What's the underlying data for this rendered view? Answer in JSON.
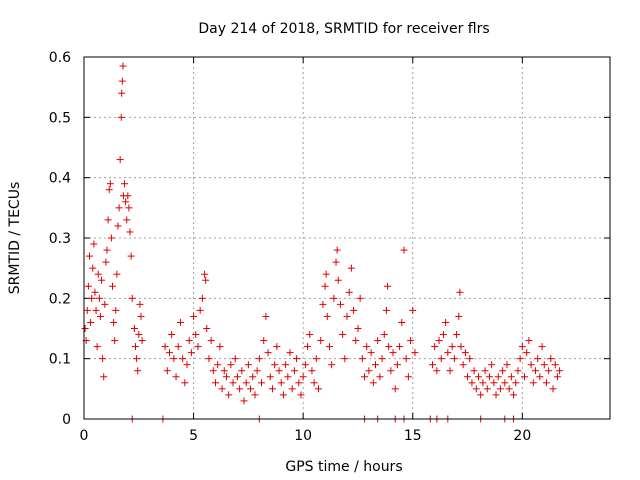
{
  "chart_data": {
    "type": "scatter",
    "title": "Day 214 of 2018, SRMTID for receiver flrs",
    "xlabel": "GPS time / hours",
    "ylabel": "SRMTID / TECUs",
    "xlim": [
      0,
      24
    ],
    "ylim": [
      0,
      0.6
    ],
    "xticks": [
      0,
      5,
      10,
      15,
      20
    ],
    "xtick_labels": [
      "0",
      "5",
      "10",
      "15",
      "20"
    ],
    "yticks": [
      0,
      0.1,
      0.2,
      0.3,
      0.4,
      0.5,
      0.6
    ],
    "ytick_labels": [
      "0",
      "0.1",
      "0.2",
      "0.3",
      "0.4",
      "0.5",
      "0.6"
    ],
    "grid": true,
    "marker": "+",
    "color": "#e00000",
    "series": [
      {
        "name": "SRMTID",
        "points": [
          [
            0.05,
            0.15
          ],
          [
            0.1,
            0.13
          ],
          [
            0.15,
            0.18
          ],
          [
            0.2,
            0.22
          ],
          [
            0.25,
            0.27
          ],
          [
            0.3,
            0.16
          ],
          [
            0.35,
            0.2
          ],
          [
            0.4,
            0.25
          ],
          [
            0.45,
            0.29
          ],
          [
            0.5,
            0.21
          ],
          [
            0.55,
            0.18
          ],
          [
            0.6,
            0.12
          ],
          [
            0.65,
            0.24
          ],
          [
            0.7,
            0.2
          ],
          [
            0.75,
            0.17
          ],
          [
            0.8,
            0.23
          ],
          [
            0.85,
            0.1
          ],
          [
            0.9,
            0.07
          ],
          [
            0.95,
            0.19
          ],
          [
            1.0,
            0.26
          ],
          [
            1.05,
            0.28
          ],
          [
            1.1,
            0.33
          ],
          [
            1.15,
            0.38
          ],
          [
            1.2,
            0.39
          ],
          [
            1.25,
            0.3
          ],
          [
            1.3,
            0.22
          ],
          [
            1.35,
            0.16
          ],
          [
            1.4,
            0.13
          ],
          [
            1.45,
            0.18
          ],
          [
            1.5,
            0.24
          ],
          [
            1.55,
            0.32
          ],
          [
            1.6,
            0.35
          ],
          [
            1.65,
            0.43
          ],
          [
            1.7,
            0.5
          ],
          [
            1.72,
            0.54
          ],
          [
            1.75,
            0.56
          ],
          [
            1.78,
            0.585
          ],
          [
            1.8,
            0.37
          ],
          [
            1.85,
            0.39
          ],
          [
            1.9,
            0.36
          ],
          [
            1.95,
            0.33
          ],
          [
            2.0,
            0.37
          ],
          [
            2.05,
            0.35
          ],
          [
            2.1,
            0.31
          ],
          [
            2.15,
            0.27
          ],
          [
            2.2,
            0.2
          ],
          [
            2.3,
            0.15
          ],
          [
            2.35,
            0.12
          ],
          [
            2.4,
            0.1
          ],
          [
            2.45,
            0.08
          ],
          [
            2.5,
            0.14
          ],
          [
            2.55,
            0.19
          ],
          [
            2.6,
            0.17
          ],
          [
            2.65,
            0.13
          ],
          [
            3.7,
            0.12
          ],
          [
            3.8,
            0.08
          ],
          [
            3.9,
            0.11
          ],
          [
            4.0,
            0.14
          ],
          [
            4.1,
            0.1
          ],
          [
            4.2,
            0.07
          ],
          [
            4.3,
            0.12
          ],
          [
            4.4,
            0.16
          ],
          [
            4.5,
            0.1
          ],
          [
            4.6,
            0.06
          ],
          [
            4.7,
            0.09
          ],
          [
            4.8,
            0.13
          ],
          [
            4.9,
            0.11
          ],
          [
            5.0,
            0.17
          ],
          [
            5.1,
            0.14
          ],
          [
            5.2,
            0.12
          ],
          [
            5.3,
            0.18
          ],
          [
            5.4,
            0.2
          ],
          [
            5.5,
            0.24
          ],
          [
            5.55,
            0.23
          ],
          [
            5.6,
            0.15
          ],
          [
            5.7,
            0.1
          ],
          [
            5.8,
            0.13
          ],
          [
            5.9,
            0.08
          ],
          [
            6.0,
            0.06
          ],
          [
            6.1,
            0.09
          ],
          [
            6.2,
            0.12
          ],
          [
            6.3,
            0.05
          ],
          [
            6.4,
            0.08
          ],
          [
            6.5,
            0.07
          ],
          [
            6.6,
            0.04
          ],
          [
            6.7,
            0.09
          ],
          [
            6.8,
            0.06
          ],
          [
            6.9,
            0.1
          ],
          [
            7.0,
            0.07
          ],
          [
            7.1,
            0.05
          ],
          [
            7.2,
            0.08
          ],
          [
            7.3,
            0.03
          ],
          [
            7.4,
            0.06
          ],
          [
            7.5,
            0.09
          ],
          [
            7.6,
            0.05
          ],
          [
            7.7,
            0.07
          ],
          [
            7.8,
            0.04
          ],
          [
            7.9,
            0.08
          ],
          [
            8.0,
            0.1
          ],
          [
            8.1,
            0.06
          ],
          [
            8.2,
            0.13
          ],
          [
            8.3,
            0.17
          ],
          [
            8.4,
            0.11
          ],
          [
            8.5,
            0.07
          ],
          [
            8.6,
            0.05
          ],
          [
            8.7,
            0.09
          ],
          [
            8.8,
            0.12
          ],
          [
            8.9,
            0.08
          ],
          [
            9.0,
            0.06
          ],
          [
            9.1,
            0.04
          ],
          [
            9.2,
            0.09
          ],
          [
            9.3,
            0.07
          ],
          [
            9.4,
            0.11
          ],
          [
            9.5,
            0.05
          ],
          [
            9.6,
            0.08
          ],
          [
            9.7,
            0.1
          ],
          [
            9.8,
            0.06
          ],
          [
            9.9,
            0.04
          ],
          [
            10.0,
            0.07
          ],
          [
            10.1,
            0.09
          ],
          [
            10.2,
            0.12
          ],
          [
            10.3,
            0.14
          ],
          [
            10.4,
            0.08
          ],
          [
            10.5,
            0.06
          ],
          [
            10.6,
            0.1
          ],
          [
            10.7,
            0.05
          ],
          [
            10.8,
            0.13
          ],
          [
            10.9,
            0.19
          ],
          [
            11.0,
            0.22
          ],
          [
            11.05,
            0.24
          ],
          [
            11.1,
            0.17
          ],
          [
            11.2,
            0.12
          ],
          [
            11.3,
            0.09
          ],
          [
            11.4,
            0.2
          ],
          [
            11.5,
            0.26
          ],
          [
            11.55,
            0.28
          ],
          [
            11.6,
            0.23
          ],
          [
            11.7,
            0.19
          ],
          [
            11.8,
            0.14
          ],
          [
            11.9,
            0.1
          ],
          [
            12.0,
            0.17
          ],
          [
            12.1,
            0.21
          ],
          [
            12.2,
            0.25
          ],
          [
            12.3,
            0.18
          ],
          [
            12.4,
            0.13
          ],
          [
            12.5,
            0.15
          ],
          [
            12.6,
            0.2
          ],
          [
            12.7,
            0.1
          ],
          [
            12.8,
            0.07
          ],
          [
            12.9,
            0.12
          ],
          [
            13.0,
            0.08
          ],
          [
            13.1,
            0.11
          ],
          [
            13.2,
            0.06
          ],
          [
            13.3,
            0.09
          ],
          [
            13.4,
            0.13
          ],
          [
            13.5,
            0.07
          ],
          [
            13.6,
            0.1
          ],
          [
            13.7,
            0.14
          ],
          [
            13.8,
            0.18
          ],
          [
            13.85,
            0.22
          ],
          [
            13.9,
            0.12
          ],
          [
            14.0,
            0.08
          ],
          [
            14.1,
            0.11
          ],
          [
            14.2,
            0.05
          ],
          [
            14.3,
            0.09
          ],
          [
            14.4,
            0.12
          ],
          [
            14.5,
            0.16
          ],
          [
            14.6,
            0.28
          ],
          [
            14.7,
            0.1
          ],
          [
            14.8,
            0.07
          ],
          [
            14.9,
            0.13
          ],
          [
            15.0,
            0.18
          ],
          [
            15.1,
            0.11
          ],
          [
            15.9,
            0.09
          ],
          [
            16.0,
            0.12
          ],
          [
            16.1,
            0.08
          ],
          [
            16.2,
            0.13
          ],
          [
            16.3,
            0.1
          ],
          [
            16.4,
            0.14
          ],
          [
            16.5,
            0.16
          ],
          [
            16.6,
            0.11
          ],
          [
            16.7,
            0.08
          ],
          [
            16.8,
            0.12
          ],
          [
            16.9,
            0.1
          ],
          [
            17.0,
            0.14
          ],
          [
            17.1,
            0.17
          ],
          [
            17.15,
            0.21
          ],
          [
            17.2,
            0.12
          ],
          [
            17.3,
            0.09
          ],
          [
            17.4,
            0.11
          ],
          [
            17.5,
            0.07
          ],
          [
            17.6,
            0.1
          ],
          [
            17.7,
            0.06
          ],
          [
            17.8,
            0.08
          ],
          [
            17.9,
            0.05
          ],
          [
            18.0,
            0.07
          ],
          [
            18.1,
            0.04
          ],
          [
            18.2,
            0.06
          ],
          [
            18.3,
            0.08
          ],
          [
            18.4,
            0.05
          ],
          [
            18.5,
            0.07
          ],
          [
            18.6,
            0.09
          ],
          [
            18.7,
            0.06
          ],
          [
            18.8,
            0.04
          ],
          [
            18.9,
            0.07
          ],
          [
            19.0,
            0.05
          ],
          [
            19.1,
            0.08
          ],
          [
            19.2,
            0.06
          ],
          [
            19.3,
            0.09
          ],
          [
            19.4,
            0.05
          ],
          [
            19.5,
            0.07
          ],
          [
            19.6,
            0.04
          ],
          [
            19.7,
            0.06
          ],
          [
            19.8,
            0.08
          ],
          [
            19.9,
            0.1
          ],
          [
            20.0,
            0.12
          ],
          [
            20.1,
            0.07
          ],
          [
            20.2,
            0.11
          ],
          [
            20.3,
            0.13
          ],
          [
            20.4,
            0.09
          ],
          [
            20.5,
            0.06
          ],
          [
            20.6,
            0.08
          ],
          [
            20.7,
            0.1
          ],
          [
            20.8,
            0.07
          ],
          [
            20.9,
            0.12
          ],
          [
            21.0,
            0.09
          ],
          [
            21.1,
            0.06
          ],
          [
            21.2,
            0.08
          ],
          [
            21.3,
            0.1
          ],
          [
            21.4,
            0.05
          ],
          [
            21.5,
            0.09
          ],
          [
            21.6,
            0.07
          ],
          [
            21.7,
            0.08
          ],
          [
            2.2,
            0
          ],
          [
            3.6,
            0
          ],
          [
            8.0,
            0
          ],
          [
            12.8,
            0
          ],
          [
            13.4,
            0
          ],
          [
            14.2,
            0
          ],
          [
            14.6,
            0
          ],
          [
            15.8,
            0
          ],
          [
            16.1,
            0
          ],
          [
            16.6,
            0
          ],
          [
            18.1,
            0
          ],
          [
            19.2,
            0
          ],
          [
            19.6,
            0
          ]
        ]
      }
    ]
  }
}
